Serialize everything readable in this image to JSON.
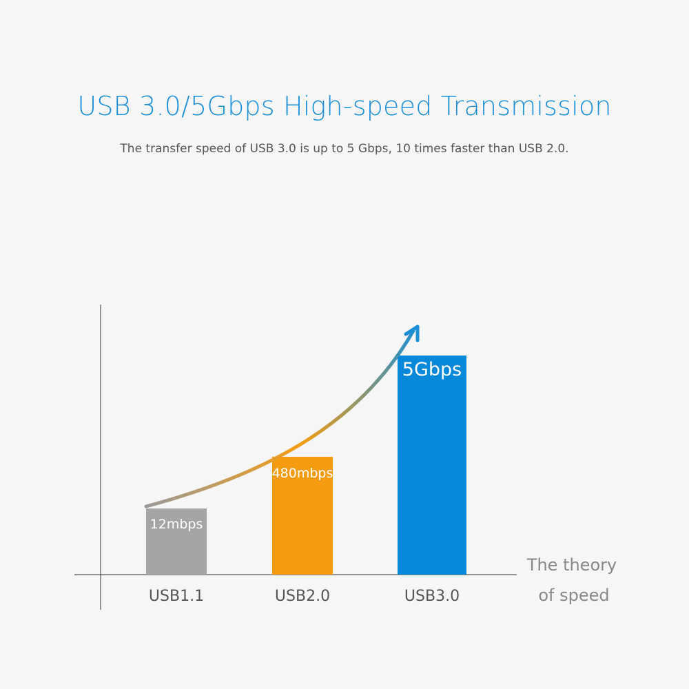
{
  "header": {
    "title": "USB 3.0/5Gbps High-speed Transmission",
    "subtitle": "The transfer speed of USB 3.0 is up to 5 Gbps, 10 times faster than USB 2.0."
  },
  "chart_data": {
    "type": "bar",
    "categories": [
      "USB1.1",
      "USB2.0",
      "USB3.0"
    ],
    "series": [
      {
        "values": [
          12,
          480,
          5000
        ],
        "unit": "mbps"
      }
    ],
    "data_labels": [
      "12mbps",
      "480mbps",
      "5Gbps"
    ],
    "bar_colors": [
      "#a5a5a5",
      "#f59c10",
      "#0888d8"
    ],
    "axis_note_lines": [
      "The theory",
      "of speed"
    ],
    "grid": false,
    "legend": "none",
    "trend_arrow": true,
    "arrow_colors": [
      "#9a9a9a",
      "#f59c10",
      "#1a8fd6"
    ]
  }
}
